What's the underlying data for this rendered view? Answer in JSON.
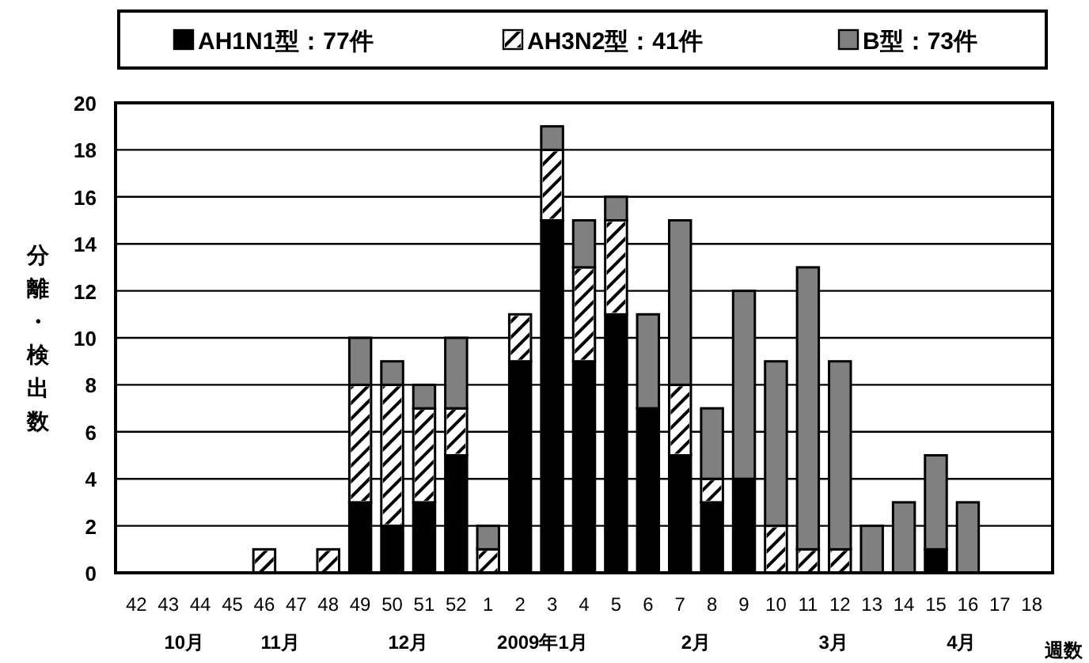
{
  "chart_data": {
    "type": "bar",
    "stacked": true,
    "ylabel": "分離・検出数",
    "xlabel": "週数",
    "categories": [
      "42",
      "43",
      "44",
      "45",
      "46",
      "47",
      "48",
      "49",
      "50",
      "51",
      "52",
      "1",
      "2",
      "3",
      "4",
      "5",
      "6",
      "7",
      "8",
      "9",
      "10",
      "11",
      "12",
      "13",
      "14",
      "15",
      "16",
      "17",
      "18"
    ],
    "series": [
      {
        "name": "AH1N1型：77件",
        "color": "#000000",
        "values": [
          0,
          0,
          0,
          0,
          0,
          0,
          0,
          3,
          2,
          3,
          5,
          0,
          9,
          15,
          9,
          11,
          7,
          5,
          3,
          4,
          0,
          0,
          0,
          0,
          0,
          1,
          0,
          0,
          0
        ]
      },
      {
        "name": "AH3N2型：41件",
        "color": "#ffffff",
        "values": [
          0,
          0,
          0,
          0,
          1,
          0,
          1,
          5,
          6,
          4,
          2,
          1,
          2,
          3,
          4,
          4,
          0,
          3,
          1,
          0,
          2,
          1,
          1,
          0,
          0,
          0,
          0,
          0,
          0
        ]
      },
      {
        "name": "B型：73件",
        "color": "#808080",
        "values": [
          0,
          0,
          0,
          0,
          0,
          0,
          0,
          2,
          1,
          1,
          3,
          1,
          0,
          1,
          2,
          1,
          4,
          7,
          3,
          8,
          7,
          12,
          8,
          2,
          3,
          4,
          3,
          0,
          0
        ]
      }
    ],
    "ylim": [
      0,
      20
    ],
    "yticks": [
      0,
      2,
      4,
      6,
      8,
      10,
      12,
      14,
      16,
      18,
      20
    ],
    "grid": "y",
    "legend": "top",
    "annotations": [
      "10月",
      "11月",
      "12月",
      "2009年1月",
      "2月",
      "3月",
      "4月"
    ]
  }
}
